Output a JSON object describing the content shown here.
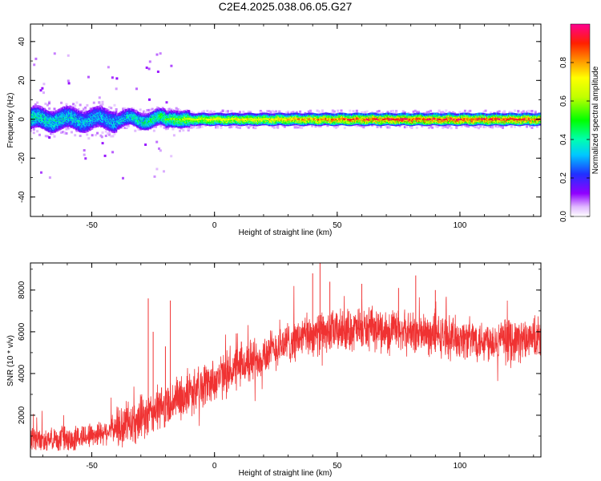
{
  "figure": {
    "title": "C2E4.2025.038.06.05.G27"
  },
  "chart_data": [
    {
      "type": "heatmap",
      "name": "spectrogram",
      "xlabel": "Height of straight line (km)",
      "ylabel": "Frequency (Hz)",
      "xlim": [
        -75,
        133
      ],
      "ylim": [
        -50,
        49
      ],
      "xticks": [
        -50,
        0,
        50,
        100
      ],
      "yticks": [
        -40,
        -20,
        0,
        20,
        40
      ],
      "ridge": {
        "description": "Doppler line of normalized spectral amplitude centered near 0 Hz",
        "center_hz": 0,
        "points": [
          {
            "x": -75,
            "amp": 0.45
          },
          {
            "x": -60,
            "amp": 0.42
          },
          {
            "x": -45,
            "amp": 0.35
          },
          {
            "x": -30,
            "amp": 0.45
          },
          {
            "x": -15,
            "amp": 0.6
          },
          {
            "x": 0,
            "amp": 0.7
          },
          {
            "x": 20,
            "amp": 0.75
          },
          {
            "x": 40,
            "amp": 0.8
          },
          {
            "x": 60,
            "amp": 0.9
          },
          {
            "x": 80,
            "amp": 0.92
          },
          {
            "x": 100,
            "amp": 0.92
          },
          {
            "x": 120,
            "amp": 0.9
          },
          {
            "x": 133,
            "amp": 0.88
          }
        ]
      },
      "colorbar": {
        "label": "Normalized spectral amplitude",
        "range": [
          0,
          1
        ],
        "ticks": [
          "0.0",
          "0.2",
          "0.4",
          "0.6",
          "0.8"
        ],
        "tick_values": [
          0,
          0.2,
          0.4,
          0.6,
          0.8
        ],
        "colormap": "rainbow (white-purple-blue-cyan-green-yellow-orange-red-magenta)"
      }
    },
    {
      "type": "line",
      "name": "snr",
      "xlabel": "Height of straight line (km)",
      "ylabel": "SNR (10 * v/v)",
      "xlim": [
        -75,
        133
      ],
      "ylim": [
        0,
        9300
      ],
      "xticks": [
        -50,
        0,
        50,
        100
      ],
      "yticks": [
        2000,
        4000,
        6000,
        8000
      ],
      "line_color": "#f03232",
      "envelope": [
        {
          "x": -75,
          "y": 850
        },
        {
          "x": -65,
          "y": 800
        },
        {
          "x": -55,
          "y": 950
        },
        {
          "x": -45,
          "y": 1200
        },
        {
          "x": -35,
          "y": 1600
        },
        {
          "x": -28,
          "y": 1900
        },
        {
          "x": -20,
          "y": 2500
        },
        {
          "x": -10,
          "y": 3100
        },
        {
          "x": 0,
          "y": 3700
        },
        {
          "x": 10,
          "y": 4300
        },
        {
          "x": 20,
          "y": 4900
        },
        {
          "x": 30,
          "y": 5500
        },
        {
          "x": 40,
          "y": 5900
        },
        {
          "x": 55,
          "y": 6100
        },
        {
          "x": 70,
          "y": 6100
        },
        {
          "x": 85,
          "y": 5900
        },
        {
          "x": 100,
          "y": 5700
        },
        {
          "x": 115,
          "y": 5600
        },
        {
          "x": 133,
          "y": 5600
        }
      ],
      "spikes": [
        {
          "x": -27,
          "y": 7600
        },
        {
          "x": -25,
          "y": 6000
        },
        {
          "x": -20,
          "y": 5300
        },
        {
          "x": -18,
          "y": 7500
        },
        {
          "x": 40,
          "y": 8800
        },
        {
          "x": 43,
          "y": 9300
        },
        {
          "x": 47,
          "y": 8400
        },
        {
          "x": 60,
          "y": 8300
        },
        {
          "x": 75,
          "y": 8100
        },
        {
          "x": 82,
          "y": 8700
        },
        {
          "x": 90,
          "y": 8000
        }
      ]
    }
  ]
}
